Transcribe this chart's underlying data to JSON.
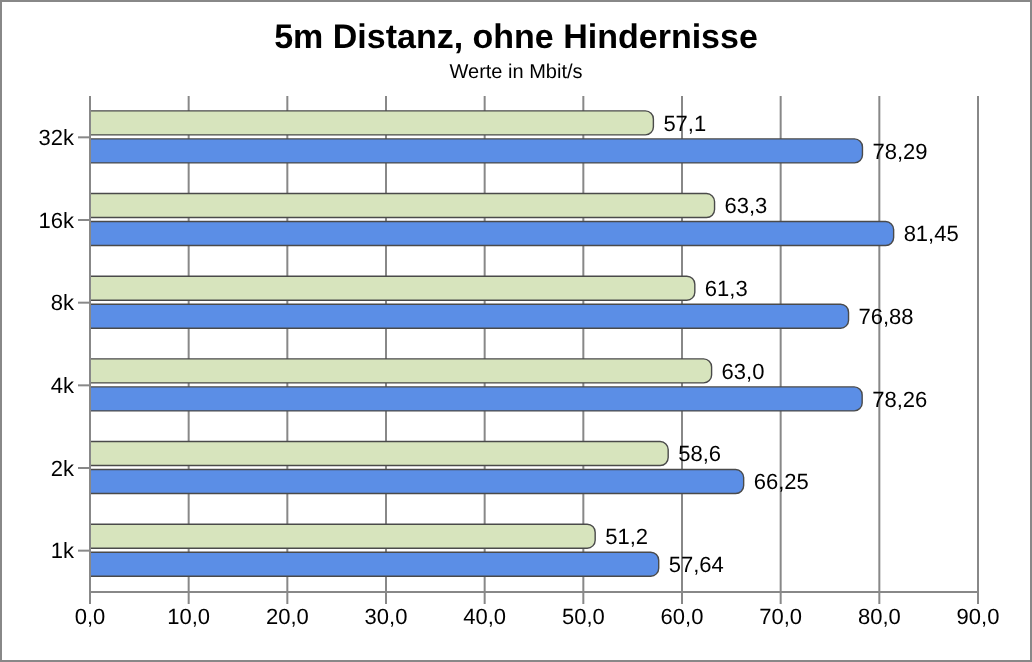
{
  "chart_data": {
    "type": "bar",
    "orientation": "horizontal",
    "title": "5m Distanz, ohne Hindernisse",
    "subtitle": "Werte in Mbit/s",
    "categories": [
      "32k",
      "16k",
      "8k",
      "4k",
      "2k",
      "1k"
    ],
    "series": [
      {
        "color": "#d7e4bd",
        "values": [
          57.1,
          63.3,
          61.3,
          63.0,
          58.6,
          51.2
        ],
        "value_labels": [
          "57,1",
          "63,3",
          "61,3",
          "63,0",
          "58,6",
          "51,2"
        ]
      },
      {
        "color": "#5b8ee6",
        "values": [
          78.29,
          81.45,
          76.88,
          78.26,
          66.25,
          57.64
        ],
        "value_labels": [
          "78,29",
          "81,45",
          "76,88",
          "78,26",
          "66,25",
          "57,64"
        ]
      }
    ],
    "xlim": [
      0,
      90
    ],
    "xticks": [
      {
        "value": 0,
        "label": "0,0"
      },
      {
        "value": 10,
        "label": "10,0"
      },
      {
        "value": 20,
        "label": "20,0"
      },
      {
        "value": 30,
        "label": "30,0"
      },
      {
        "value": 40,
        "label": "40,0"
      },
      {
        "value": 50,
        "label": "50,0"
      },
      {
        "value": 60,
        "label": "60,0"
      },
      {
        "value": 70,
        "label": "70,0"
      },
      {
        "value": 80,
        "label": "80,0"
      },
      {
        "value": 90,
        "label": "90,0"
      }
    ],
    "grid": "x",
    "legend": false
  }
}
